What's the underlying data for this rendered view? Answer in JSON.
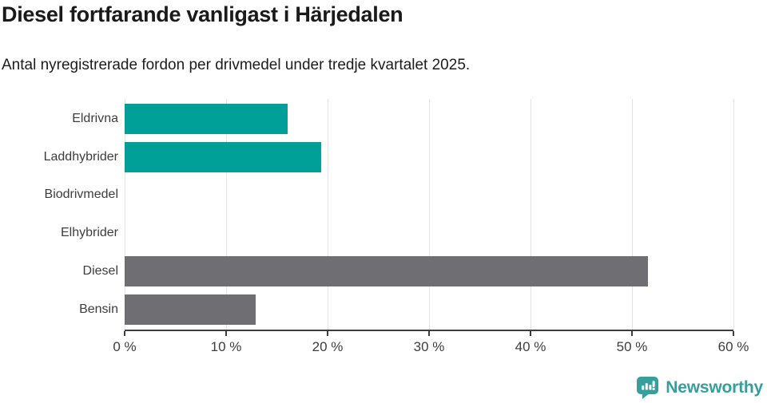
{
  "chart_data": {
    "type": "bar",
    "orientation": "horizontal",
    "title": "Diesel fortfarande vanligast i Härjedalen",
    "subtitle": "Antal nyregistrerade fordon per drivmedel under tredje kvartalet 2025.",
    "categories": [
      "Eldrivna",
      "Laddhybrider",
      "Biodrivmedel",
      "Elhybrider",
      "Diesel",
      "Bensin"
    ],
    "values": [
      16.1,
      19.4,
      0,
      0,
      51.6,
      12.9
    ],
    "unit": "%",
    "xlabel": "",
    "ylabel": "",
    "xlim": [
      0,
      60
    ],
    "x_ticks": [
      0,
      10,
      20,
      30,
      40,
      50,
      60
    ],
    "x_tick_labels": [
      "0 %",
      "10 %",
      "20 %",
      "30 %",
      "40 %",
      "50 %",
      "60 %"
    ],
    "bar_colors": [
      "#00a099",
      "#00a099",
      "#00a099",
      "#00a099",
      "#6e6e73",
      "#6e6e73"
    ],
    "grid": true,
    "legend": false
  },
  "colors": {
    "teal_bar": "#00a099",
    "gray_bar": "#6e6e73",
    "gridline": "#e3e3e3",
    "axis": "#3d3d3d",
    "brand_teal": "#35a09b"
  },
  "branding": {
    "name": "Newsworthy"
  }
}
